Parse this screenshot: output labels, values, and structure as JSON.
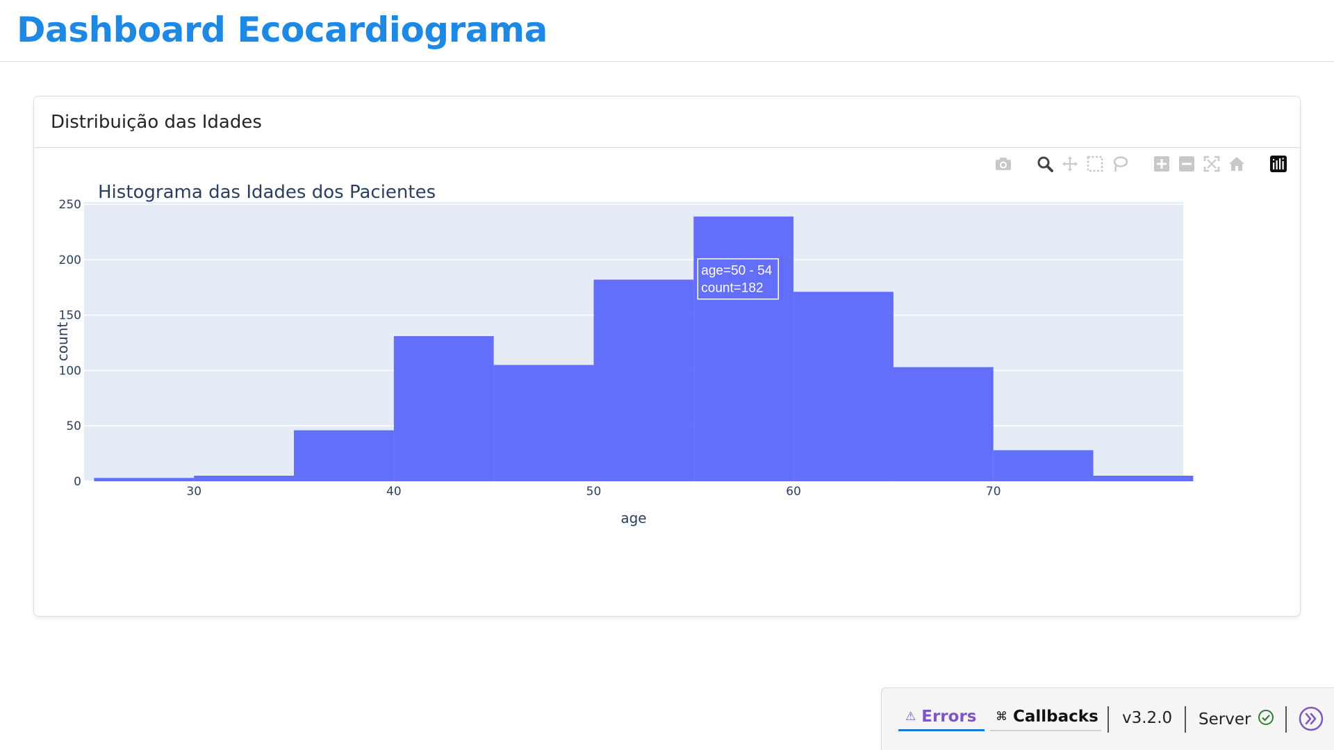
{
  "header": {
    "title": "Dashboard Ecocardiograma"
  },
  "card": {
    "title": "Distribuição das Idades"
  },
  "modebar": {
    "buttons": [
      "camera-icon",
      "zoom-icon",
      "pan-icon",
      "box-select-icon",
      "lasso-select-icon",
      "zoom-in-icon",
      "zoom-out-icon",
      "autoscale-icon",
      "reset-axes-icon",
      "plotly-logo-icon"
    ]
  },
  "chart_data": {
    "type": "bar",
    "title": "Histograma das Idades dos Pacientes",
    "xlabel": "age",
    "ylabel": "count",
    "bin_width": 5,
    "bins": [
      {
        "start": 25,
        "end": 30,
        "count": 3
      },
      {
        "start": 30,
        "end": 35,
        "count": 5
      },
      {
        "start": 35,
        "end": 40,
        "count": 46
      },
      {
        "start": 40,
        "end": 45,
        "count": 131
      },
      {
        "start": 45,
        "end": 50,
        "count": 105
      },
      {
        "start": 50,
        "end": 55,
        "count": 182
      },
      {
        "start": 55,
        "end": 60,
        "count": 239
      },
      {
        "start": 60,
        "end": 65,
        "count": 171
      },
      {
        "start": 65,
        "end": 70,
        "count": 103
      },
      {
        "start": 70,
        "end": 75,
        "count": 28
      },
      {
        "start": 75,
        "end": 80,
        "count": 5
      }
    ],
    "xlim": [
      24.5,
      79.5
    ],
    "ylim": [
      0,
      252
    ],
    "xticks": [
      30,
      40,
      50,
      60,
      70
    ],
    "yticks": [
      0,
      50,
      100,
      150,
      200,
      250
    ],
    "bar_color": "#636efa",
    "plot_bg": "#e5ecf6",
    "grid": true,
    "legend": "none",
    "hover": {
      "bin_index": 5,
      "line1": "age=50 - 54",
      "line2": "count=182"
    }
  },
  "devtools": {
    "errors_label": "Errors",
    "callbacks_label": "Callbacks",
    "version": "v3.2.0",
    "server_label": "Server"
  },
  "colors": {
    "title_blue": "#1e88e5",
    "errors_purple": "#7e57c2",
    "server_ok": "#2e7d32"
  }
}
